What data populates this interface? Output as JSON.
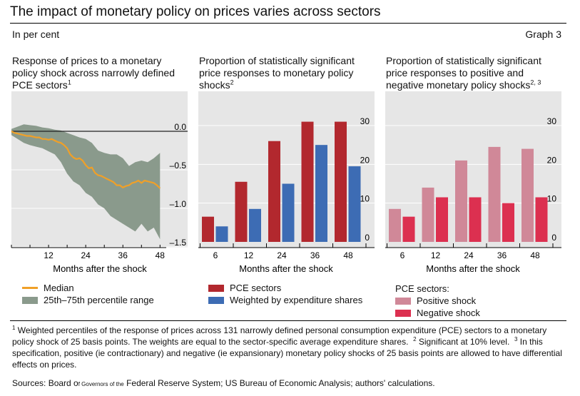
{
  "header": {
    "title": "The impact of monetary policy on prices varies across sectors",
    "unit": "In per cent",
    "graph_number": "Graph 3"
  },
  "panels": [
    {
      "title_lines": [
        "Response of prices to a monetary",
        "policy shock across narrowly defined",
        "PCE sectors"
      ],
      "title_sup": "1"
    },
    {
      "title_lines": [
        "Proportion of statistically significant",
        "price responses to monetary policy",
        "shocks"
      ],
      "title_sup": "2"
    },
    {
      "title_lines": [
        "Proportion of statistically significant",
        "price responses to positive and",
        "negative monetary policy shocks"
      ],
      "title_sup": "2, 3"
    }
  ],
  "legends": {
    "left": {
      "median": "Median",
      "range": "25th–75th percentile range"
    },
    "middle": {
      "pce": "PCE sectors",
      "weighted": "Weighted by expenditure shares"
    },
    "right": {
      "heading": "PCE sectors:",
      "positive": "Positive shock",
      "negative": "Negative shock"
    }
  },
  "colors": {
    "panel_bg": "#e6e6e6",
    "median": "#f0a028",
    "range": "#8a9a8c",
    "pce": "#b2282e",
    "weighted": "#3d6cb4",
    "positive": "#d08898",
    "negative": "#dc3050"
  },
  "chart_data": [
    {
      "type": "area",
      "xlabel": "Months after the shock",
      "ylabel": "",
      "xlim": [
        0,
        50
      ],
      "ylim": [
        -1.5,
        0.15
      ],
      "xticks": [
        "12",
        "24",
        "36",
        "48"
      ],
      "yticks": [
        "0.0",
        "–0.5",
        "–1.0",
        "–1.5"
      ],
      "yticks_values": [
        0,
        -0.5,
        -1.0,
        -1.5
      ],
      "series": [
        {
          "name": "Median",
          "x": [
            0,
            1,
            2,
            3,
            4,
            5,
            6,
            7,
            8,
            9,
            10,
            11,
            12,
            13,
            14,
            15,
            16,
            17,
            18,
            19,
            20,
            21,
            22,
            23,
            24,
            25,
            26,
            27,
            28,
            29,
            30,
            31,
            32,
            33,
            34,
            35,
            36,
            37,
            38,
            39,
            40,
            41,
            42,
            43,
            44,
            45,
            46,
            47,
            48
          ],
          "values": [
            0,
            -0.02,
            -0.03,
            -0.04,
            -0.05,
            -0.06,
            -0.06,
            -0.07,
            -0.08,
            -0.08,
            -0.1,
            -0.1,
            -0.11,
            -0.1,
            -0.12,
            -0.14,
            -0.15,
            -0.18,
            -0.22,
            -0.3,
            -0.34,
            -0.36,
            -0.35,
            -0.38,
            -0.44,
            -0.48,
            -0.47,
            -0.54,
            -0.57,
            -0.58,
            -0.6,
            -0.62,
            -0.64,
            -0.66,
            -0.7,
            -0.7,
            -0.73,
            -0.71,
            -0.7,
            -0.67,
            -0.66,
            -0.64,
            -0.67,
            -0.64,
            -0.65,
            -0.66,
            -0.67,
            -0.7,
            -0.74
          ]
        },
        {
          "name": "25th–75th percentile range",
          "x": [
            0,
            2,
            4,
            6,
            8,
            10,
            12,
            14,
            16,
            18,
            20,
            22,
            24,
            26,
            28,
            30,
            32,
            34,
            36,
            38,
            40,
            42,
            44,
            46,
            48
          ],
          "upper": [
            0.03,
            0.06,
            0.09,
            0.08,
            0.07,
            0.05,
            0.04,
            0.02,
            0.01,
            -0.02,
            -0.05,
            -0.08,
            -0.1,
            -0.15,
            -0.25,
            -0.28,
            -0.3,
            -0.3,
            -0.35,
            -0.45,
            -0.4,
            -0.38,
            -0.4,
            -0.35,
            -0.28
          ],
          "lower": [
            -0.05,
            -0.1,
            -0.15,
            -0.18,
            -0.2,
            -0.22,
            -0.26,
            -0.3,
            -0.4,
            -0.55,
            -0.65,
            -0.7,
            -0.8,
            -0.85,
            -0.95,
            -1.0,
            -1.1,
            -1.15,
            -1.2,
            -1.25,
            -1.3,
            -1.2,
            -1.3,
            -1.25,
            -1.4
          ]
        }
      ]
    },
    {
      "type": "bar",
      "xlabel": "Months after the shock",
      "ylabel": "",
      "ylim": [
        0,
        33
      ],
      "categories": [
        "6",
        "12",
        "24",
        "36",
        "48"
      ],
      "yticks": [
        0,
        10,
        20,
        30
      ],
      "series": [
        {
          "name": "PCE sectors",
          "values": [
            6.5,
            15.5,
            26,
            31,
            31
          ]
        },
        {
          "name": "Weighted by expenditure shares",
          "values": [
            4,
            8.5,
            15,
            25,
            19.5
          ]
        }
      ]
    },
    {
      "type": "bar",
      "xlabel": "Months after the shock",
      "ylabel": "",
      "ylim": [
        0,
        33
      ],
      "categories": [
        "6",
        "12",
        "24",
        "36",
        "48"
      ],
      "yticks": [
        0,
        10,
        20,
        30
      ],
      "series": [
        {
          "name": "Positive shock",
          "values": [
            8.5,
            14,
            21,
            24.5,
            24
          ]
        },
        {
          "name": "Negative shock",
          "values": [
            6.5,
            11.5,
            11.5,
            10,
            11.5
          ]
        }
      ]
    }
  ],
  "footnotes": {
    "n1_mark": "1",
    "n1_text": "Weighted percentiles of the response of prices across 131 narrowly defined personal consumption expenditure (PCE) sectors to a monetary policy shock of 25 basis points. The weights are equal to the sector-specific average expenditure shares.",
    "n2_mark": "2",
    "n2_text": "Significant at 10% level.",
    "n3_mark": "3",
    "n3_text": "In this specification, positive (ie contractionary) and negative (ie expansionary) monetary policy shocks of 25 basis points are allowed to have differential effects on prices."
  },
  "sources": {
    "prefix": "Sources: Board o",
    "small": "f Governors of the",
    "rest": " Federal Reserve System; US Bureau of Economic Analysis; authors' calculations."
  }
}
